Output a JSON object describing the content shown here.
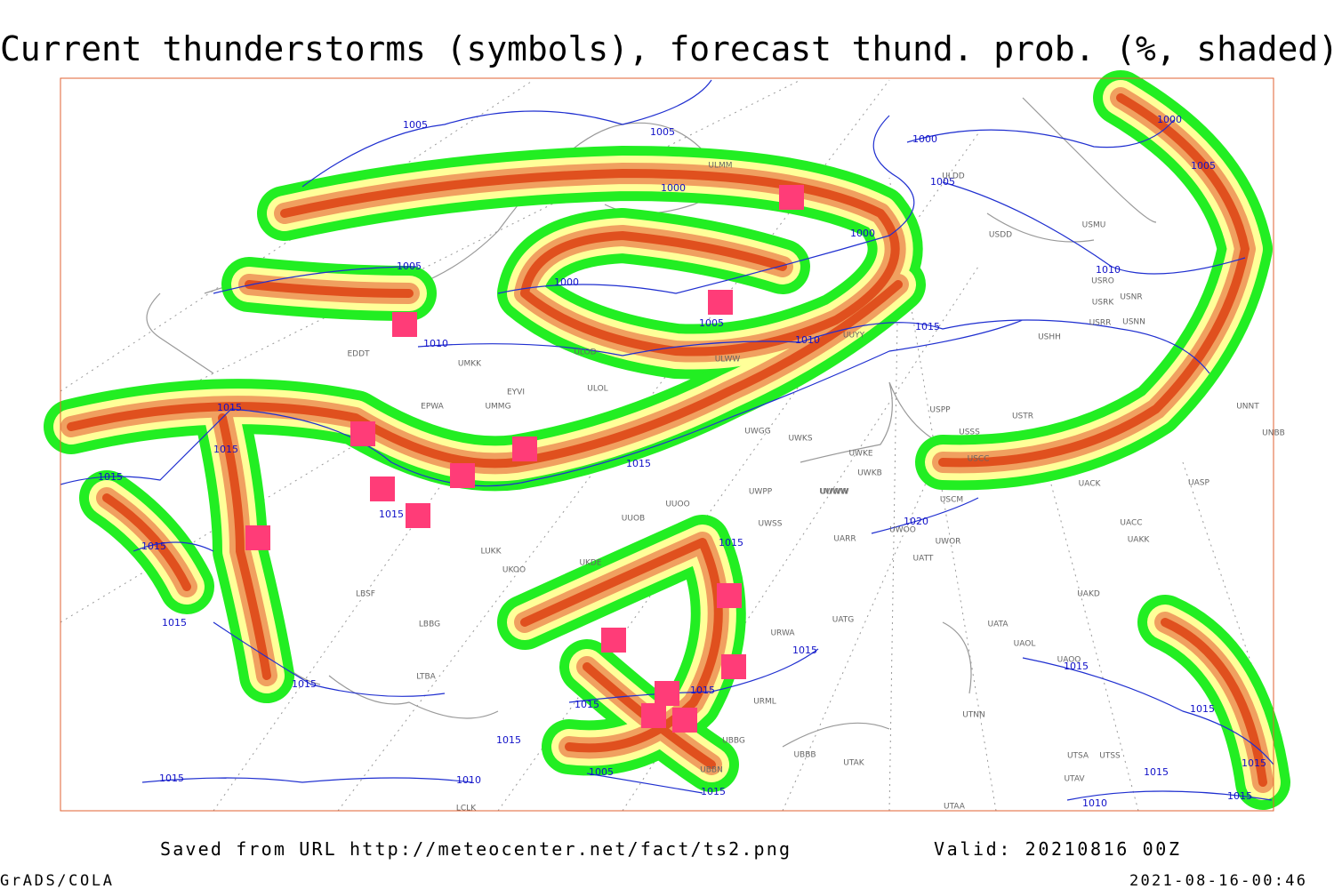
{
  "header": {
    "title": "Current thunderstorms (symbols), forecast thund. prob. (%, shaded)"
  },
  "footer": {
    "source": "Saved from URL http://meteocenter.net/fact/ts2.png",
    "valid": "Valid: 20210816 00Z",
    "software": "GrADS/COLA",
    "timestamp": "2021-08-16-00:46"
  },
  "isobar_labels": [
    "1005",
    "1005",
    "1000",
    "1000",
    "1005",
    "1000",
    "1005",
    "1000",
    "1005",
    "1000",
    "1010",
    "1005",
    "1010",
    "1010",
    "1015",
    "1015",
    "1015",
    "1015",
    "1015",
    "1015",
    "1020",
    "1015",
    "1015",
    "1015",
    "1015",
    "1015",
    "1015",
    "1015",
    "1015",
    "1015",
    "1015",
    "1015",
    "1010",
    "1005",
    "1015",
    "1015",
    "1015",
    "1010",
    "1015"
  ],
  "stations": [
    "EDDT",
    "UMKK",
    "ULOD",
    "ULOL",
    "EYVI",
    "EPWA",
    "UMMG",
    "ULWW",
    "UUYY",
    "USHH",
    "USDD",
    "USMU",
    "USRO",
    "USRK",
    "USNR",
    "USRR",
    "USNN",
    "ULMM",
    "ULDD",
    "UUWW",
    "UWKE",
    "UWKS",
    "UWGG",
    "USPP",
    "USTR",
    "USSS",
    "USCC",
    "USCM",
    "UACK",
    "UASP",
    "UNNT",
    "UNBB",
    "UACC",
    "UAKK",
    "UARR",
    "UWOO",
    "UWOR",
    "UATT",
    "UAKD",
    "UATG",
    "UATA",
    "UAOL",
    "UAOO",
    "UTNN",
    "UTSA",
    "UTSS",
    "UTAV",
    "UTAK",
    "UTAA",
    "UBBB",
    "UBBN",
    "LUKK",
    "UKOO",
    "UKDE",
    "UUOB",
    "UUOO",
    "UWPP",
    "UWSS",
    "UWWW",
    "UWKB",
    "LBSF",
    "LBBG",
    "LTBA",
    "URWA",
    "URML",
    "UBBG",
    "LCLK"
  ]
}
